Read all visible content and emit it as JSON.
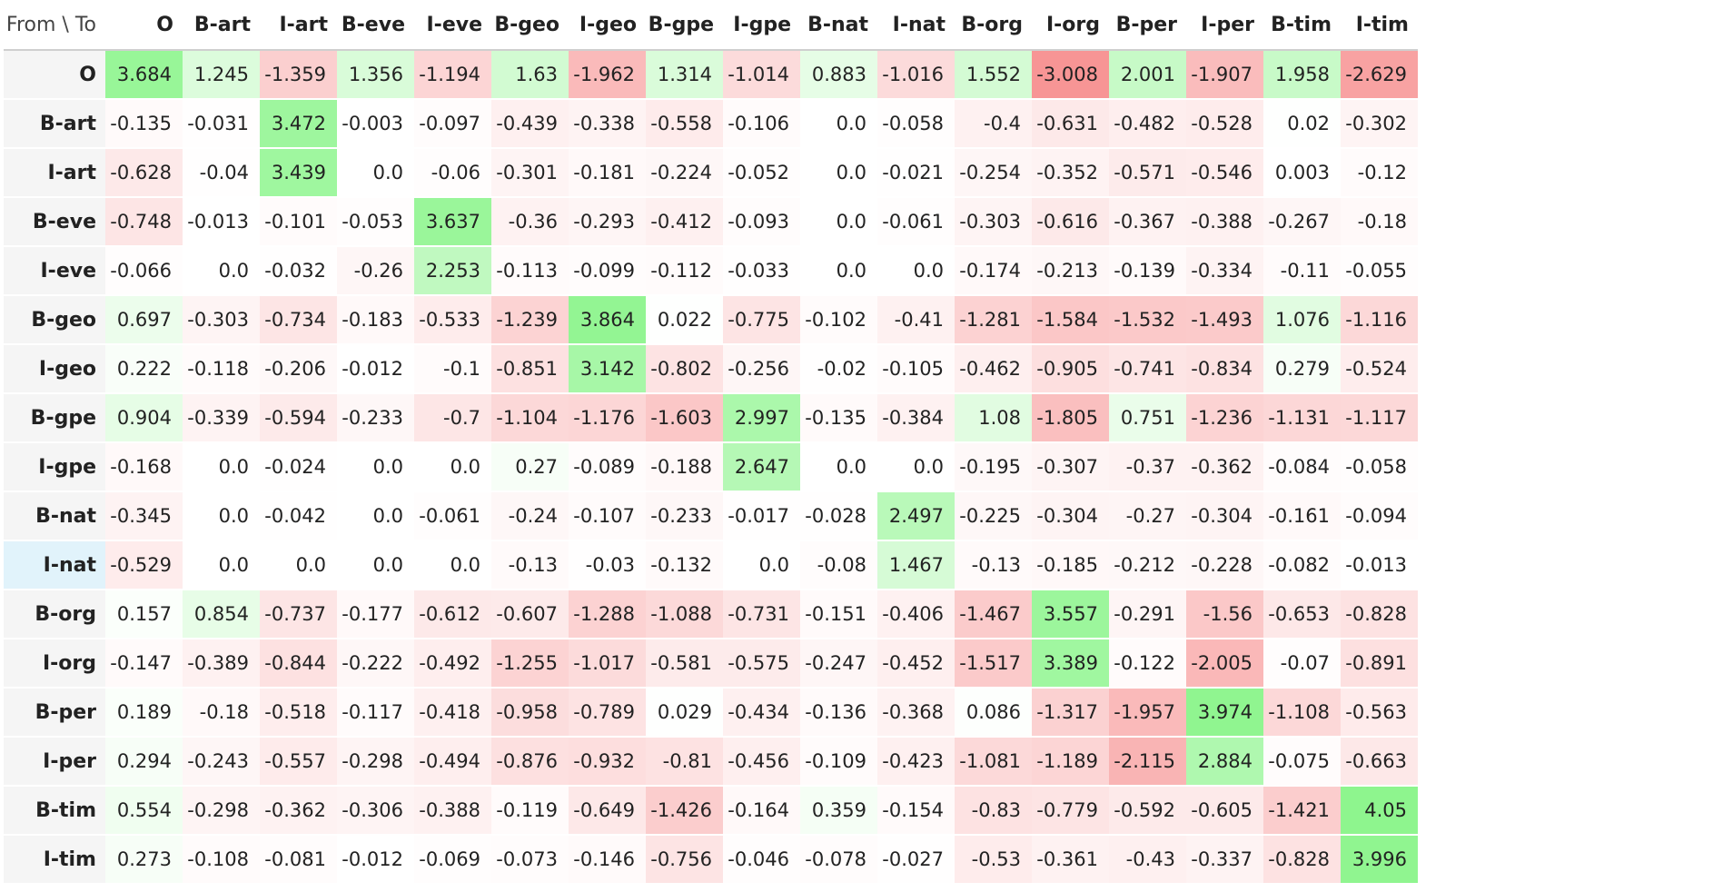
{
  "chart_data": {
    "type": "heatmap",
    "corner_label": "From \\ To",
    "columns": [
      "O",
      "B-art",
      "I-art",
      "B-eve",
      "I-eve",
      "B-geo",
      "I-geo",
      "B-gpe",
      "I-gpe",
      "B-nat",
      "I-nat",
      "B-org",
      "I-org",
      "B-per",
      "I-per",
      "B-tim",
      "I-tim"
    ],
    "rows": [
      "O",
      "B-art",
      "I-art",
      "B-eve",
      "I-eve",
      "B-geo",
      "I-geo",
      "B-gpe",
      "I-gpe",
      "B-nat",
      "I-nat",
      "B-org",
      "I-org",
      "B-per",
      "I-per",
      "B-tim",
      "I-tim"
    ],
    "highlighted_row": "I-nat",
    "values": [
      [
        "3.684",
        "1.245",
        "-1.359",
        "1.356",
        "-1.194",
        "1.63",
        "-1.962",
        "1.314",
        "-1.014",
        "0.883",
        "-1.016",
        "1.552",
        "-3.008",
        "2.001",
        "-1.907",
        "1.958",
        "-2.629"
      ],
      [
        "-0.135",
        "-0.031",
        "3.472",
        "-0.003",
        "-0.097",
        "-0.439",
        "-0.338",
        "-0.558",
        "-0.106",
        "0.0",
        "-0.058",
        "-0.4",
        "-0.631",
        "-0.482",
        "-0.528",
        "0.02",
        "-0.302"
      ],
      [
        "-0.628",
        "-0.04",
        "3.439",
        "0.0",
        "-0.06",
        "-0.301",
        "-0.181",
        "-0.224",
        "-0.052",
        "0.0",
        "-0.021",
        "-0.254",
        "-0.352",
        "-0.571",
        "-0.546",
        "0.003",
        "-0.12"
      ],
      [
        "-0.748",
        "-0.013",
        "-0.101",
        "-0.053",
        "3.637",
        "-0.36",
        "-0.293",
        "-0.412",
        "-0.093",
        "0.0",
        "-0.061",
        "-0.303",
        "-0.616",
        "-0.367",
        "-0.388",
        "-0.267",
        "-0.18"
      ],
      [
        "-0.066",
        "0.0",
        "-0.032",
        "-0.26",
        "2.253",
        "-0.113",
        "-0.099",
        "-0.112",
        "-0.033",
        "0.0",
        "0.0",
        "-0.174",
        "-0.213",
        "-0.139",
        "-0.334",
        "-0.11",
        "-0.055"
      ],
      [
        "0.697",
        "-0.303",
        "-0.734",
        "-0.183",
        "-0.533",
        "-1.239",
        "3.864",
        "0.022",
        "-0.775",
        "-0.102",
        "-0.41",
        "-1.281",
        "-1.584",
        "-1.532",
        "-1.493",
        "1.076",
        "-1.116"
      ],
      [
        "0.222",
        "-0.118",
        "-0.206",
        "-0.012",
        "-0.1",
        "-0.851",
        "3.142",
        "-0.802",
        "-0.256",
        "-0.02",
        "-0.105",
        "-0.462",
        "-0.905",
        "-0.741",
        "-0.834",
        "0.279",
        "-0.524"
      ],
      [
        "0.904",
        "-0.339",
        "-0.594",
        "-0.233",
        "-0.7",
        "-1.104",
        "-1.176",
        "-1.603",
        "2.997",
        "-0.135",
        "-0.384",
        "1.08",
        "-1.805",
        "0.751",
        "-1.236",
        "-1.131",
        "-1.117"
      ],
      [
        "-0.168",
        "0.0",
        "-0.024",
        "0.0",
        "0.0",
        "0.27",
        "-0.089",
        "-0.188",
        "2.647",
        "0.0",
        "0.0",
        "-0.195",
        "-0.307",
        "-0.37",
        "-0.362",
        "-0.084",
        "-0.058"
      ],
      [
        "-0.345",
        "0.0",
        "-0.042",
        "0.0",
        "-0.061",
        "-0.24",
        "-0.107",
        "-0.233",
        "-0.017",
        "-0.028",
        "2.497",
        "-0.225",
        "-0.304",
        "-0.27",
        "-0.304",
        "-0.161",
        "-0.094"
      ],
      [
        "-0.529",
        "0.0",
        "0.0",
        "0.0",
        "0.0",
        "-0.13",
        "-0.03",
        "-0.132",
        "0.0",
        "-0.08",
        "1.467",
        "-0.13",
        "-0.185",
        "-0.212",
        "-0.228",
        "-0.082",
        "-0.013"
      ],
      [
        "0.157",
        "0.854",
        "-0.737",
        "-0.177",
        "-0.612",
        "-0.607",
        "-1.288",
        "-1.088",
        "-0.731",
        "-0.151",
        "-0.406",
        "-1.467",
        "3.557",
        "-0.291",
        "-1.56",
        "-0.653",
        "-0.828"
      ],
      [
        "-0.147",
        "-0.389",
        "-0.844",
        "-0.222",
        "-0.492",
        "-1.255",
        "-1.017",
        "-0.581",
        "-0.575",
        "-0.247",
        "-0.452",
        "-1.517",
        "3.389",
        "-0.122",
        "-2.005",
        "-0.07",
        "-0.891"
      ],
      [
        "0.189",
        "-0.18",
        "-0.518",
        "-0.117",
        "-0.418",
        "-0.958",
        "-0.789",
        "0.029",
        "-0.434",
        "-0.136",
        "-0.368",
        "0.086",
        "-1.317",
        "-1.957",
        "3.974",
        "-1.108",
        "-0.563"
      ],
      [
        "0.294",
        "-0.243",
        "-0.557",
        "-0.298",
        "-0.494",
        "-0.876",
        "-0.932",
        "-0.81",
        "-0.456",
        "-0.109",
        "-0.423",
        "-1.081",
        "-1.189",
        "-2.115",
        "2.884",
        "-0.075",
        "-0.663"
      ],
      [
        "0.554",
        "-0.298",
        "-0.362",
        "-0.306",
        "-0.388",
        "-0.119",
        "-0.649",
        "-1.426",
        "-0.164",
        "0.359",
        "-0.154",
        "-0.83",
        "-0.779",
        "-0.592",
        "-0.605",
        "-1.421",
        "4.05"
      ],
      [
        "0.273",
        "-0.108",
        "-0.081",
        "-0.012",
        "-0.069",
        "-0.073",
        "-0.146",
        "-0.756",
        "-0.046",
        "-0.078",
        "-0.027",
        "-0.53",
        "-0.361",
        "-0.43",
        "-0.337",
        "-0.828",
        "3.996"
      ]
    ],
    "color_scale": {
      "positive": "#8ef58e",
      "negative": "#f79595",
      "neutral": "#ffffff",
      "positive_max": 4.05,
      "negative_max": 3.008
    },
    "grid": false,
    "legend": "none"
  }
}
